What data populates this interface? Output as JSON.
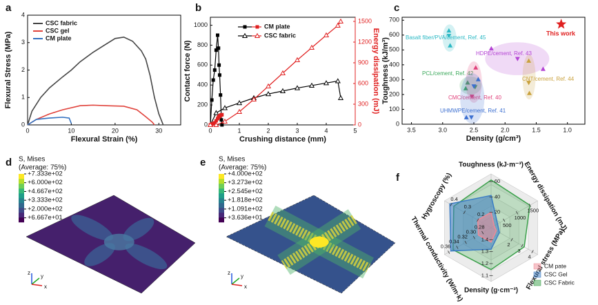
{
  "chart_data": [
    {
      "label": "a",
      "type": "line",
      "xlabel": "Flexural Strain (%)",
      "ylabel": "Flexural Stress (MPa)",
      "xlim": [
        0,
        35
      ],
      "ylim": [
        0,
        4
      ],
      "xticks": [
        0,
        10,
        20,
        30
      ],
      "yticks": [
        0,
        1,
        2,
        3,
        4
      ],
      "legend": "upper left",
      "series": [
        {
          "name": "CSC fabric",
          "color": "#444444",
          "x": [
            0,
            1,
            3,
            5,
            8,
            10,
            12,
            15,
            18,
            20,
            22,
            24,
            26,
            27,
            28,
            29,
            30,
            31
          ],
          "values": [
            0,
            0.5,
            1.0,
            1.35,
            1.75,
            2.0,
            2.3,
            2.65,
            2.95,
            3.15,
            3.2,
            3.05,
            2.7,
            2.4,
            1.8,
            1.0,
            0.4,
            0
          ]
        },
        {
          "name": "CSC gel",
          "color": "#e0413a",
          "x": [
            0,
            2,
            5,
            8,
            12,
            15,
            18,
            22,
            25,
            27,
            28.5,
            29
          ],
          "values": [
            0,
            0.2,
            0.4,
            0.55,
            0.7,
            0.72,
            0.7,
            0.68,
            0.55,
            0.3,
            0.1,
            0
          ]
        },
        {
          "name": "CM plate",
          "color": "#2f6fbf",
          "x": [
            0,
            2,
            5,
            8,
            9.5,
            10
          ],
          "values": [
            0,
            0.2,
            0.25,
            0.28,
            0.25,
            0.05
          ]
        }
      ]
    },
    {
      "label": "b",
      "type": "dual",
      "xlabel": "Crushing distance (mm)",
      "ylabel": "Contact force (N)",
      "y2label": "Energy dissipation (mJ)",
      "xlim": [
        0,
        5
      ],
      "ylim": [
        0,
        1080
      ],
      "y2lim": [
        0,
        1560
      ],
      "xticks": [
        0,
        1,
        2,
        3,
        4,
        5
      ],
      "yticks": [
        0,
        200,
        400,
        600,
        800,
        1000
      ],
      "y2ticks": [
        0,
        300,
        600,
        900,
        1200,
        1500
      ],
      "y2color": "#e02020",
      "series": [
        {
          "name": "CM plate",
          "marker": "square",
          "color": "#000000",
          "x": [
            0,
            0.05,
            0.1,
            0.15,
            0.2,
            0.25,
            0.28,
            0.3,
            0.32,
            0.35,
            0.38,
            0.4
          ],
          "values": [
            0,
            250,
            450,
            550,
            750,
            900,
            770,
            600,
            500,
            300,
            50,
            0
          ]
        },
        {
          "name": "CSC fabric",
          "marker": "open-triangle",
          "color": "#000000",
          "x": [
            0,
            0.2,
            0.5,
            1,
            1.5,
            2,
            2.5,
            3,
            3.5,
            4,
            4.4,
            4.5
          ],
          "values": [
            0,
            120,
            170,
            220,
            270,
            310,
            340,
            370,
            395,
            420,
            440,
            270
          ]
        },
        {
          "marker": "square",
          "color": "#e02020",
          "axis": "y2",
          "x": [
            0,
            0.05,
            0.1,
            0.15,
            0.2,
            0.25,
            0.28,
            0.3,
            0.32,
            0.35,
            0.38,
            0.4
          ],
          "values": [
            0,
            10,
            20,
            30,
            60,
            90,
            110,
            120,
            130,
            140,
            145,
            148
          ]
        },
        {
          "marker": "open-triangle",
          "color": "#e02020",
          "axis": "y2",
          "x": [
            0,
            0.2,
            0.5,
            1,
            1.5,
            2,
            2.5,
            3,
            3.5,
            4,
            4.4,
            4.5
          ],
          "values": [
            0,
            0,
            50,
            190,
            370,
            560,
            750,
            940,
            1120,
            1300,
            1440,
            1500
          ]
        }
      ]
    },
    {
      "label": "c",
      "type": "scatter",
      "xlabel": "Density (g/cm³)",
      "ylabel": "Toughness (kJ/m³)",
      "xlim": [
        3.65,
        0.72
      ],
      "ylim": [
        0,
        720
      ],
      "xticks": [
        3.5,
        {
          "value": 3,
          "label": "3.0"
        },
        2.5,
        {
          "value": 2,
          "label": "2.0"
        },
        1.5,
        {
          "value": 1,
          "label": "1.0"
        }
      ],
      "yticks": [
        0,
        100,
        200,
        300,
        400,
        500,
        600,
        700
      ],
      "groups": [
        {
          "name": "Basalt fiber/PVA/cement, Ref. 45",
          "color": "#2ab8c4",
          "marker": "triangle",
          "x": [
            2.9,
            2.9,
            2.88
          ],
          "values": [
            630,
            595,
            530
          ]
        },
        {
          "name": "HDPE/cement, Ref. 43",
          "color": "#b444d4",
          "marker": "triangle",
          "x": [
            2.22,
            1.8,
            1.39
          ],
          "values": [
            510,
            440,
            372
          ]
        },
        {
          "name": "CNT/cement, Ref. 44",
          "color": "#c9a13c",
          "marker": "triangle",
          "x": [
            1.62,
            1.62,
            1.61
          ],
          "values": [
            427,
            279,
            209
          ]
        },
        {
          "name": "PCL/cement, Ref. 42",
          "color": "#3aa85a",
          "marker": "triangle",
          "x": [
            2.6,
            2.48,
            2.63
          ],
          "values": [
            280,
            250,
            241
          ]
        },
        {
          "name": "CMC/cement, Ref. 40",
          "color": "#e0407a",
          "marker": "triangle",
          "x": [
            2.47,
            2.53
          ],
          "values": [
            381,
            186
          ]
        },
        {
          "name": "UHMWPE/cement, Ref. 41",
          "color": "#3c6fd0",
          "marker": "triangle",
          "x": [
            2.43,
            2.5,
            2.62,
            2.54
          ],
          "values": [
            302,
            255,
            46,
            46
          ]
        },
        {
          "name": "This work",
          "color": "#e02020",
          "marker": "star",
          "x": [
            1.1
          ],
          "values": [
            673
          ]
        }
      ]
    },
    {
      "label": "d",
      "type": "contour",
      "title": "S, Mises",
      "subtitle": "(Average: 75%)",
      "clim": [
        0,
        733.3
      ],
      "colorbar_ticks": [
        {
          "value": 733.3,
          "label": "+7.333e+02"
        },
        {
          "value": 600,
          "label": "+6.000e+02"
        },
        {
          "value": 466.7,
          "label": "+4.667e+02"
        },
        {
          "value": 333.3,
          "label": "+3.333e+02"
        },
        {
          "value": 200,
          "label": "+2.000e+02"
        },
        {
          "value": 66.67,
          "label": "+6.667e+01"
        }
      ],
      "colormap": [
        "#440154",
        "#482878",
        "#3e4989",
        "#31688e",
        "#26828e",
        "#1f9e89",
        "#35b779",
        "#6ece58",
        "#b5de2b",
        "#fde725"
      ],
      "triad": [
        "z",
        "y",
        "x"
      ]
    },
    {
      "label": "e",
      "type": "contour",
      "title": "S, Mises",
      "subtitle": "(Average: 75%)",
      "clim": [
        0,
        400
      ],
      "colorbar_ticks": [
        {
          "value": 400,
          "label": "+4.000e+02"
        },
        {
          "value": 327.3,
          "label": "+3.273e+02"
        },
        {
          "value": 254.5,
          "label": "+2.545e+02"
        },
        {
          "value": 181.8,
          "label": "+1.818e+02"
        },
        {
          "value": 109.1,
          "label": "+1.091e+02"
        },
        {
          "value": 36.36,
          "label": "+3.636e+01"
        }
      ],
      "colormap": [
        "#440154",
        "#482878",
        "#3e4989",
        "#31688e",
        "#26828e",
        "#1f9e89",
        "#35b779",
        "#6ece58",
        "#b5de2b",
        "#fde725"
      ],
      "triad": [
        "z",
        "y",
        "x"
      ]
    },
    {
      "label": "f",
      "type": "radar",
      "axes": [
        {
          "label": "Toughness (kJ·m⁻³)",
          "lim": [
            0,
            70
          ],
          "ticks": [
            20,
            40,
            60
          ]
        },
        {
          "label": "Energy dissipation (mJ)",
          "lim": [
            0,
            1800
          ],
          "ticks": [
            500,
            1000,
            1500
          ]
        },
        {
          "label": "Flexural stress (MPa)",
          "lim": [
            0,
            4.5
          ],
          "ticks": [
            2,
            3,
            4
          ]
        },
        {
          "label": "Density (g·cm⁻³)",
          "lim": [
            1.5,
            1.05
          ],
          "ticks": [
            1.4,
            1.3,
            1.2,
            1.1
          ]
        },
        {
          "label": "Thermal conductivity (W/m·k)",
          "lim": [
            0.26,
            0.37
          ],
          "ticks": [
            0.28,
            {
              "value": 0.3,
              "label": "0.30"
            },
            0.32,
            0.34,
            0.36
          ]
        },
        {
          "label": "Hygroscopy (%)",
          "lim": [
            0.1,
            0.45
          ],
          "ticks": [
            0.2,
            0.3,
            0.4
          ]
        }
      ],
      "series": [
        {
          "name": "CM pate",
          "color": "#f08a96",
          "values": [
            20,
            120,
            0.5,
            1.38,
            0.29,
            0.2
          ]
        },
        {
          "name": "CSC Gel",
          "color": "#3a7cc4",
          "values": [
            42,
            250,
            0.8,
            1.32,
            0.355,
            0.41
          ]
        },
        {
          "name": "CSC Fabric",
          "color": "#3aa04a",
          "values": [
            62,
            1500,
            3.2,
            1.15,
            0.35,
            0.38
          ]
        }
      ]
    }
  ]
}
